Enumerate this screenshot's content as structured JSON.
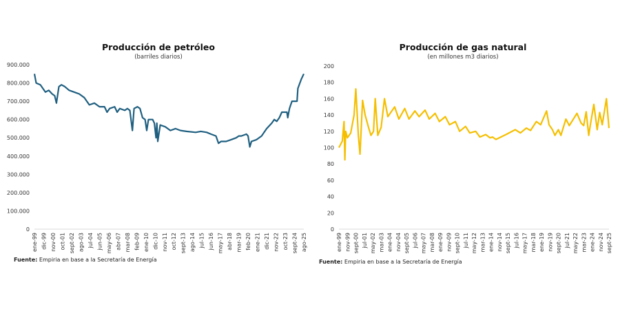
{
  "chart_data": [
    {
      "type": "line",
      "title": "Producción de petróleo",
      "subtitle": "(barriles diarios)",
      "source_label": "Fuente:",
      "source_text": " Empiria en base a la Secretaría de Energía",
      "color": "#1f5f80",
      "ylim": [
        0,
        900000
      ],
      "yticks": [
        "0",
        "100.000",
        "200.000",
        "300.000",
        "400.000",
        "500.000",
        "600.000",
        "700.000",
        "800.000",
        "900.000"
      ],
      "xlim": [
        "1999-01",
        "2025-08"
      ],
      "xtick_labels": [
        "ene-99",
        "dic-99",
        "nov-00",
        "oct-01",
        "sept-02",
        "ago-03",
        "jul-04",
        "jun-05",
        "may-06",
        "abr-07",
        "mar-08",
        "feb-09",
        "ene-10",
        "dic-10",
        "nov-11",
        "oct-12",
        "sept-13",
        "ago-14",
        "jul-15",
        "jun-16",
        "may-17",
        "abr-18",
        "mar-19",
        "feb-20",
        "ene-21",
        "dic-21",
        "nov-22",
        "oct-23",
        "sept-24",
        "ago-25"
      ],
      "grid": false,
      "series": [
        {
          "x": [
            "1999-01",
            "1999-03",
            "1999-08",
            "2000-02",
            "2000-06",
            "2000-10",
            "2001-01",
            "2001-03",
            "2001-06",
            "2001-09",
            "2002-01",
            "2002-06",
            "2002-12",
            "2003-06",
            "2003-12",
            "2004-03",
            "2004-06",
            "2004-12",
            "2005-06",
            "2005-12",
            "2006-03",
            "2006-06",
            "2006-12",
            "2007-03",
            "2007-06",
            "2007-12",
            "2008-03",
            "2008-06",
            "2008-09",
            "2008-11",
            "2009-03",
            "2009-06",
            "2009-09",
            "2009-12",
            "2010-02",
            "2010-04",
            "2010-09",
            "2010-11",
            "2011-01",
            "2011-02",
            "2011-03",
            "2011-06",
            "2011-12",
            "2012-06",
            "2012-12",
            "2013-06",
            "2014-01",
            "2014-12",
            "2015-06",
            "2016-01",
            "2016-06",
            "2016-12",
            "2017-03",
            "2017-06",
            "2017-12",
            "2018-06",
            "2018-12",
            "2019-03",
            "2019-06",
            "2019-12",
            "2020-02",
            "2020-04",
            "2020-06",
            "2020-12",
            "2021-06",
            "2021-12",
            "2022-06",
            "2022-09",
            "2022-12",
            "2023-03",
            "2023-06",
            "2023-09",
            "2023-12",
            "2024-01",
            "2024-03",
            "2024-06",
            "2024-12",
            "2025-01",
            "2025-05",
            "2025-08"
          ],
          "y": [
            850000,
            800000,
            790000,
            750000,
            760000,
            740000,
            730000,
            690000,
            780000,
            790000,
            780000,
            760000,
            750000,
            740000,
            720000,
            700000,
            680000,
            690000,
            670000,
            670000,
            640000,
            660000,
            670000,
            640000,
            660000,
            650000,
            660000,
            650000,
            540000,
            660000,
            670000,
            660000,
            610000,
            600000,
            540000,
            600000,
            600000,
            580000,
            500000,
            580000,
            480000,
            570000,
            560000,
            540000,
            550000,
            540000,
            535000,
            530000,
            535000,
            530000,
            520000,
            510000,
            470000,
            480000,
            480000,
            490000,
            500000,
            510000,
            510000,
            520000,
            510000,
            450000,
            480000,
            490000,
            510000,
            550000,
            580000,
            600000,
            590000,
            610000,
            640000,
            640000,
            640000,
            610000,
            660000,
            700000,
            700000,
            770000,
            820000,
            850000
          ]
        }
      ]
    },
    {
      "type": "line",
      "title": "Producción de gas natural",
      "subtitle": "(en millones m3 diarios)",
      "source_label": "Fuente:",
      "source_text": " Empiria en base a la Secretaría de Energía",
      "color": "#f5bf00",
      "ylim": [
        0,
        200
      ],
      "yticks": [
        "0",
        "20",
        "40",
        "60",
        "80",
        "100",
        "120",
        "140",
        "160",
        "180",
        "200"
      ],
      "xlim": [
        "1999-01",
        "2025-09"
      ],
      "xtick_labels": [
        "ene-99",
        "nov-99",
        "sept-00",
        "jul-01",
        "may-02",
        "mar-03",
        "ene-04",
        "nov-04",
        "sept-05",
        "jul-06",
        "may-07",
        "mar-08",
        "ene-09",
        "nov-09",
        "sept-10",
        "jul-11",
        "may-12",
        "mar-13",
        "ene-14",
        "nov-14",
        "sept-15",
        "jul-16",
        "may-17",
        "mar-18",
        "ene-19",
        "nov-19",
        "sept-20",
        "jul-21",
        "may-22",
        "mar-23",
        "ene-24",
        "nov-24",
        "sept-25"
      ],
      "grid": false,
      "series": [
        {
          "x": [
            "1999-01",
            "1999-05",
            "1999-07",
            "1999-08",
            "1999-09",
            "1999-11",
            "2000-03",
            "2000-07",
            "2000-09",
            "2000-12",
            "2001-02",
            "2001-05",
            "2001-08",
            "2001-12",
            "2002-03",
            "2002-06",
            "2002-08",
            "2002-11",
            "2003-03",
            "2003-07",
            "2003-11",
            "2004-07",
            "2004-12",
            "2005-07",
            "2005-12",
            "2006-07",
            "2006-12",
            "2007-07",
            "2007-12",
            "2008-07",
            "2008-12",
            "2009-07",
            "2009-12",
            "2010-07",
            "2010-12",
            "2011-07",
            "2011-12",
            "2012-07",
            "2012-12",
            "2013-07",
            "2013-12",
            "2014-03",
            "2014-07",
            "2015-07",
            "2016-06",
            "2016-12",
            "2017-07",
            "2017-12",
            "2018-07",
            "2018-12",
            "2019-07",
            "2019-10",
            "2020-02",
            "2020-05",
            "2020-09",
            "2020-12",
            "2021-06",
            "2021-10",
            "2022-07",
            "2022-12",
            "2023-03",
            "2023-06",
            "2023-09",
            "2023-11",
            "2024-03",
            "2024-07",
            "2024-10",
            "2025-01",
            "2025-06",
            "2025-09"
          ],
          "y": [
            100,
            108,
            132,
            85,
            120,
            112,
            118,
            140,
            172,
            115,
            92,
            158,
            140,
            125,
            115,
            120,
            160,
            115,
            125,
            160,
            138,
            150,
            135,
            148,
            135,
            145,
            138,
            146,
            135,
            142,
            132,
            138,
            128,
            132,
            120,
            126,
            118,
            120,
            113,
            116,
            112,
            113,
            110,
            116,
            122,
            118,
            124,
            121,
            132,
            128,
            145,
            128,
            122,
            115,
            122,
            115,
            135,
            127,
            142,
            130,
            127,
            144,
            115,
            128,
            153,
            122,
            143,
            128,
            160,
            124
          ]
        }
      ]
    }
  ]
}
